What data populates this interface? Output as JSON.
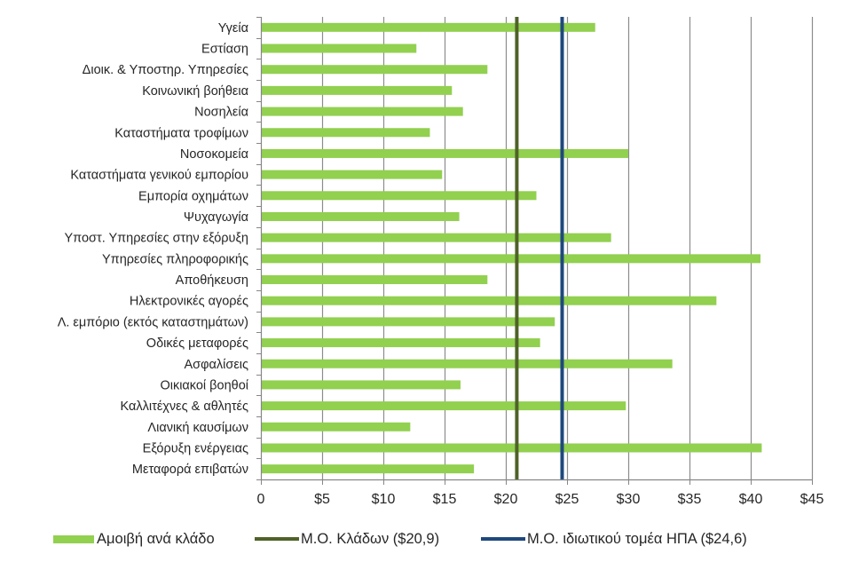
{
  "chart_data": {
    "type": "bar",
    "orientation": "horizontal",
    "title": "",
    "xlabel": "",
    "ylabel": "",
    "xlim": [
      0,
      45
    ],
    "x_ticks": [
      0,
      5,
      10,
      15,
      20,
      25,
      30,
      35,
      40,
      45
    ],
    "x_tick_labels": [
      "0",
      "$5",
      "$10",
      "$15",
      "$20",
      "$25",
      "$30",
      "$35",
      "$40",
      "$45"
    ],
    "grid": "vertical",
    "legend_position": "bottom",
    "categories": [
      "Υγεία",
      "Εστίαση",
      "Διοικ. & Υποστηρ. Υπηρεσίες",
      "Κοινωνική βοήθεια",
      "Νοσηλεία",
      "Καταστήματα τροφίμων",
      "Νοσοκομεία",
      "Καταστήματα γενικού εμπορίου",
      "Εμπορία οχημάτων",
      "Ψυχαγωγία",
      "Υποστ. Υπηρεσίες στην εξόρυξη",
      "Υπηρεσίες πληροφορικής",
      "Αποθήκευση",
      "Ηλεκτρονικές αγορές",
      "Λ. εμπόριο (εκτός καταστημάτων)",
      "Οδικές μεταφορές",
      "Ασφαλίσεις",
      "Οικιακοί βοηθοί",
      "Καλλιτέχνες & αθλητές",
      "Λιανική καυσίμων",
      "Εξόρυξη ενέργειας",
      "Μεταφορά επιβατών"
    ],
    "series": [
      {
        "name": "Αμοιβή ανά κλάδο",
        "kind": "bar",
        "color": "#92d050",
        "values": [
          27.3,
          12.7,
          18.5,
          15.6,
          16.5,
          13.8,
          30.0,
          14.8,
          22.5,
          16.2,
          28.6,
          40.8,
          18.5,
          37.2,
          24.0,
          22.8,
          33.6,
          16.3,
          29.8,
          12.2,
          40.9,
          17.4
        ]
      },
      {
        "name": "Μ.Ο. Κλάδων ($20,9)",
        "kind": "reference-line",
        "color": "#4f6228",
        "value": 20.9
      },
      {
        "name": "Μ.Ο. ιδιωτικού τομέα ΗΠΑ ($24,6)",
        "kind": "reference-line",
        "color": "#1f497d",
        "value": 24.6
      }
    ]
  },
  "legend": {
    "items": [
      {
        "label": "Αμοιβή ανά κλάδο",
        "color": "#92d050"
      },
      {
        "label": "Μ.Ο. Κλάδων  ($20,9)",
        "color": "#4f6228"
      },
      {
        "label": "Μ.Ο.  ιδιωτικού τομέα ΗΠΑ ($24,6)",
        "color": "#1f497d"
      }
    ]
  },
  "colors": {
    "axis": "#868686",
    "grid": "#8c8c8c",
    "text": "#262626"
  }
}
